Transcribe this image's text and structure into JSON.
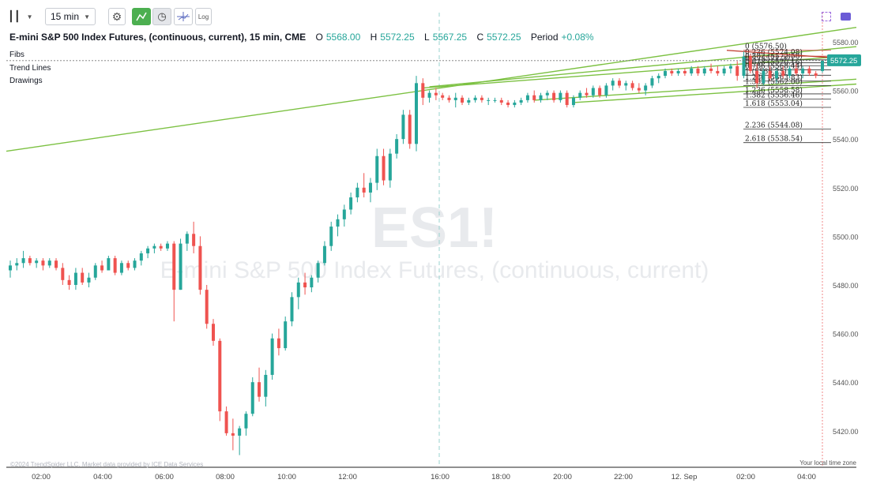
{
  "toolbar": {
    "timeframe": "15 min",
    "log_label": "Log"
  },
  "legend": {
    "title": "E-mini S&P 500 Index Futures, (continuous, current), 15 min, CME",
    "open_label": "O",
    "open": "5568.00",
    "high_label": "H",
    "high": "5572.25",
    "low_label": "L",
    "low": "5567.25",
    "close_label": "C",
    "close": "5572.25",
    "period_label": "Period",
    "period": "+0.08%"
  },
  "layers": [
    "Fibs",
    "Trend Lines",
    "Drawings"
  ],
  "watermark": {
    "symbol": "ES1!",
    "name": "E-mini S&P 500 Index Futures, (continuous, current)"
  },
  "footer": {
    "copyright": "©2024 TrendSpider LLC. Market data provided by ICE Data Services",
    "timezone": "Your local time zone"
  },
  "colors": {
    "up": "#26a69a",
    "down": "#ef5350",
    "trend": "#7cc142",
    "fib_top": "#c0392b",
    "price_tag": "#26a69a"
  },
  "chart_data": {
    "type": "candlestick",
    "ylim": [
      5405,
      5592
    ],
    "y_ticks": [
      5420.0,
      5440.0,
      5460.0,
      5480.0,
      5500.0,
      5520.0,
      5540.0,
      5560.0,
      5580.0
    ],
    "x_ticks": [
      "02:00",
      "04:00",
      "06:00",
      "08:00",
      "10:00",
      "12:00",
      "16:00",
      "18:00",
      "20:00",
      "22:00",
      "12. Sep",
      "02:00",
      "04:00"
    ],
    "last_price": 5572.25,
    "ohlc": [
      [
        5486,
        5490,
        5483,
        5488
      ],
      [
        5488,
        5491,
        5486,
        5489
      ],
      [
        5489,
        5494,
        5487,
        5491
      ],
      [
        5491,
        5492,
        5488,
        5489
      ],
      [
        5489,
        5491,
        5487,
        5490
      ],
      [
        5490,
        5491,
        5486,
        5488
      ],
      [
        5488,
        5491,
        5487,
        5490
      ],
      [
        5490,
        5491,
        5486,
        5487
      ],
      [
        5487,
        5489,
        5480,
        5482
      ],
      [
        5482,
        5484,
        5478,
        5480
      ],
      [
        5480,
        5487,
        5478,
        5485
      ],
      [
        5485,
        5487,
        5480,
        5481
      ],
      [
        5481,
        5485,
        5479,
        5483
      ],
      [
        5483,
        5489,
        5482,
        5488
      ],
      [
        5488,
        5490,
        5485,
        5486
      ],
      [
        5486,
        5492,
        5486,
        5491
      ],
      [
        5491,
        5492,
        5484,
        5485
      ],
      [
        5485,
        5490,
        5484,
        5489
      ],
      [
        5489,
        5490,
        5486,
        5487
      ],
      [
        5487,
        5491,
        5486,
        5490
      ],
      [
        5490,
        5494,
        5488,
        5493
      ],
      [
        5493,
        5496,
        5491,
        5495
      ],
      [
        5495,
        5497,
        5493,
        5496
      ],
      [
        5496,
        5497,
        5494,
        5495
      ],
      [
        5495,
        5498,
        5494,
        5497
      ],
      [
        5497,
        5498,
        5465,
        5478
      ],
      [
        5478,
        5499,
        5478,
        5497
      ],
      [
        5497,
        5502,
        5494,
        5501
      ],
      [
        5501,
        5506,
        5493,
        5496
      ],
      [
        5496,
        5500,
        5476,
        5478
      ],
      [
        5478,
        5480,
        5462,
        5464
      ],
      [
        5464,
        5466,
        5455,
        5457
      ],
      [
        5457,
        5458,
        5424,
        5428
      ],
      [
        5428,
        5430,
        5418,
        5419
      ],
      [
        5419,
        5425,
        5412,
        5418
      ],
      [
        5418,
        5422,
        5410,
        5421
      ],
      [
        5421,
        5428,
        5418,
        5427
      ],
      [
        5427,
        5442,
        5426,
        5440
      ],
      [
        5440,
        5446,
        5432,
        5434
      ],
      [
        5434,
        5445,
        5430,
        5443
      ],
      [
        5443,
        5460,
        5441,
        5458
      ],
      [
        5458,
        5462,
        5451,
        5454
      ],
      [
        5454,
        5467,
        5453,
        5465
      ],
      [
        5465,
        5477,
        5463,
        5475
      ],
      [
        5475,
        5483,
        5470,
        5481
      ],
      [
        5481,
        5485,
        5476,
        5479
      ],
      [
        5479,
        5484,
        5477,
        5483
      ],
      [
        5483,
        5490,
        5481,
        5489
      ],
      [
        5489,
        5498,
        5488,
        5496
      ],
      [
        5496,
        5506,
        5494,
        5504
      ],
      [
        5504,
        5509,
        5500,
        5507
      ],
      [
        5507,
        5513,
        5504,
        5511
      ],
      [
        5511,
        5518,
        5509,
        5516
      ],
      [
        5516,
        5522,
        5514,
        5520
      ],
      [
        5520,
        5526,
        5516,
        5518
      ],
      [
        5518,
        5524,
        5514,
        5522
      ],
      [
        5522,
        5536,
        5519,
        5533
      ],
      [
        5533,
        5536,
        5521,
        5523
      ],
      [
        5523,
        5536,
        5520,
        5534
      ],
      [
        5534,
        5542,
        5532,
        5540
      ],
      [
        5540,
        5552,
        5538,
        5550
      ],
      [
        5550,
        5552,
        5536,
        5538
      ],
      [
        5538,
        5566,
        5535,
        5563
      ],
      [
        5563,
        5565,
        5554,
        5557
      ],
      [
        5557,
        5560,
        5555,
        5559
      ],
      [
        5559,
        5561,
        5556,
        5558
      ],
      [
        5558,
        5559,
        5556,
        5557
      ],
      [
        5557,
        5558,
        5555,
        5556
      ],
      [
        5556,
        5559,
        5553,
        5557
      ],
      [
        5557,
        5558,
        5554,
        5555
      ],
      [
        5555,
        5557,
        5554,
        5556
      ],
      [
        5556,
        5558,
        5555,
        5557
      ],
      [
        5557,
        5558,
        5555,
        5556
      ],
      [
        5556,
        5557,
        5554,
        5556
      ],
      [
        5556,
        5557,
        5555,
        5556
      ],
      [
        5556,
        5557,
        5554,
        5555
      ],
      [
        5555,
        5556,
        5553,
        5554
      ],
      [
        5554,
        5556,
        5553,
        5555
      ],
      [
        5555,
        5557,
        5554,
        5556
      ],
      [
        5556,
        5559,
        5555,
        5558
      ],
      [
        5558,
        5560,
        5555,
        5556
      ],
      [
        5556,
        5559,
        5555,
        5558
      ],
      [
        5558,
        5560,
        5556,
        5559
      ],
      [
        5559,
        5560,
        5555,
        5556
      ],
      [
        5556,
        5560,
        5555,
        5559
      ],
      [
        5559,
        5560,
        5553,
        5554
      ],
      [
        5554,
        5558,
        5553,
        5557
      ],
      [
        5557,
        5560,
        5556,
        5559
      ],
      [
        5559,
        5561,
        5557,
        5558
      ],
      [
        5558,
        5562,
        5557,
        5561
      ],
      [
        5561,
        5562,
        5557,
        5558
      ],
      [
        5558,
        5563,
        5557,
        5562
      ],
      [
        5562,
        5565,
        5560,
        5564
      ],
      [
        5564,
        5565,
        5561,
        5562
      ],
      [
        5562,
        5564,
        5560,
        5563
      ],
      [
        5563,
        5564,
        5560,
        5561
      ],
      [
        5561,
        5563,
        5559,
        5560
      ],
      [
        5560,
        5563,
        5558,
        5562
      ],
      [
        5562,
        5566,
        5561,
        5565
      ],
      [
        5565,
        5567,
        5563,
        5566
      ],
      [
        5566,
        5569,
        5565,
        5568
      ],
      [
        5568,
        5569,
        5566,
        5567
      ],
      [
        5567,
        5569,
        5566,
        5568
      ],
      [
        5568,
        5569,
        5566,
        5567
      ],
      [
        5567,
        5570,
        5566,
        5569
      ],
      [
        5569,
        5570,
        5566,
        5567
      ],
      [
        5567,
        5570,
        5566,
        5569
      ],
      [
        5569,
        5571,
        5567,
        5568
      ],
      [
        5568,
        5570,
        5566,
        5567
      ],
      [
        5567,
        5570,
        5566,
        5569
      ],
      [
        5569,
        5571,
        5567,
        5570
      ],
      [
        5570,
        5572,
        5564,
        5566
      ],
      [
        5566,
        5576,
        5565,
        5574
      ],
      [
        5574,
        5575,
        5567,
        5568
      ],
      [
        5568,
        5571,
        5561,
        5563
      ],
      [
        5563,
        5569,
        5562,
        5568
      ],
      [
        5568,
        5570,
        5564,
        5565
      ],
      [
        5565,
        5569,
        5563,
        5568
      ],
      [
        5568,
        5570,
        5565,
        5566
      ],
      [
        5566,
        5570,
        5565,
        5569
      ],
      [
        5569,
        5571,
        5566,
        5567
      ],
      [
        5567,
        5570,
        5565,
        5569
      ],
      [
        5569,
        5570,
        5566,
        5567
      ],
      [
        5567,
        5568,
        5565,
        5566
      ],
      [
        5568,
        5572.25,
        5567.25,
        5572.25
      ]
    ],
    "fib_levels": [
      {
        "label": "0 (5576.50)",
        "value": 5576.5
      },
      {
        "label": "0.236 (5574.08)",
        "value": 5574.08
      },
      {
        "label": "0.382 (5572.58)",
        "value": 5572.58
      },
      {
        "label": "0.5 (5571.37)",
        "value": 5571.37
      },
      {
        "label": "0.618 (5570.16)",
        "value": 5570.16
      },
      {
        "label": "0.786 (5568.44)",
        "value": 5568.44
      },
      {
        "label": "1 (5566.25)",
        "value": 5566.25
      },
      {
        "label": "1.236 (5563.83)",
        "value": 5563.83
      },
      {
        "label": "1.382 (5562.00)",
        "value": 5562.0
      },
      {
        "label": "1.236 (5558.58)",
        "value": 5558.58
      },
      {
        "label": "1.382 (5556.46)",
        "value": 5556.46
      },
      {
        "label": "1.618 (5553.04)",
        "value": 5553.04
      },
      {
        "label": "2.236 (5544.08)",
        "value": 5544.08
      },
      {
        "label": "2.618 (5538.54)",
        "value": 5538.54
      }
    ],
    "trend_lines": [
      {
        "from": [
          0,
          5535
        ],
        "to": [
          137,
          5589
        ]
      },
      {
        "from": [
          64,
          5561.5
        ],
        "to": [
          137,
          5580
        ]
      },
      {
        "from": [
          63,
          5561
        ],
        "to": [
          137,
          5576
        ]
      },
      {
        "from": [
          80,
          5556
        ],
        "to": [
          137,
          5566
        ]
      },
      {
        "from": [
          86,
          5555
        ],
        "to": [
          137,
          5564
        ]
      }
    ]
  }
}
